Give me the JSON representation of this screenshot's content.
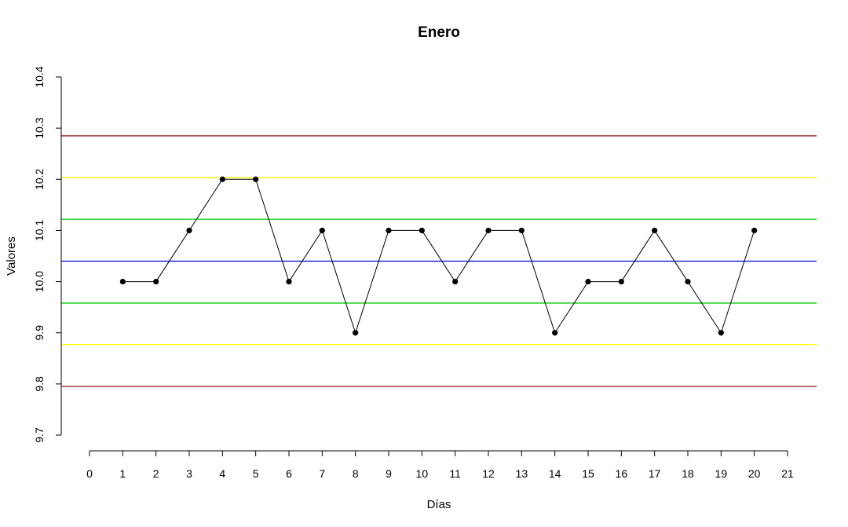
{
  "chart_data": {
    "type": "line",
    "title": "Enero",
    "xlabel": "Días",
    "ylabel": "Valores",
    "xlim": [
      0,
      21
    ],
    "ylim": [
      9.7,
      10.4
    ],
    "x_ticks": [
      0,
      1,
      2,
      3,
      4,
      5,
      6,
      7,
      8,
      9,
      10,
      11,
      12,
      13,
      14,
      15,
      16,
      17,
      18,
      19,
      20,
      21
    ],
    "x_tick_labels": [
      "0",
      "1",
      "2",
      "3",
      "4",
      "5",
      "6",
      "7",
      "8",
      "9",
      "10",
      "11",
      "12",
      "13",
      "14",
      "15",
      "16",
      "17",
      "18",
      "19",
      "20",
      "21"
    ],
    "y_ticks": [
      9.7,
      9.8,
      9.9,
      10.0,
      10.1,
      10.2,
      10.3,
      10.4
    ],
    "y_tick_labels": [
      "9.7",
      "9.8",
      "9.9",
      "10.0",
      "10.1",
      "10.2",
      "10.3",
      "10.4"
    ],
    "grid": false,
    "series": [
      {
        "color": "#000000",
        "x": [
          1,
          2,
          3,
          4,
          5,
          6,
          7,
          8,
          9,
          10,
          11,
          12,
          13,
          14,
          15,
          16,
          17,
          18,
          19,
          20
        ],
        "values": [
          10.0,
          10.0,
          10.1,
          10.2,
          10.2,
          10.0,
          10.1,
          9.9,
          10.1,
          10.1,
          10.0,
          10.1,
          10.1,
          9.9,
          10.0,
          10.0,
          10.1,
          10.0,
          9.9,
          10.1
        ]
      }
    ],
    "reference_lines": [
      {
        "value": 10.285,
        "color": "#8B1A1A"
      },
      {
        "value": 10.203,
        "color": "#FFFF00"
      },
      {
        "value": 10.122,
        "color": "#00CC00"
      },
      {
        "value": 10.04,
        "color": "#0000CC"
      },
      {
        "value": 9.958,
        "color": "#00CC00"
      },
      {
        "value": 9.877,
        "color": "#FFFF00"
      },
      {
        "value": 9.795,
        "color": "#8B1A1A"
      }
    ]
  }
}
